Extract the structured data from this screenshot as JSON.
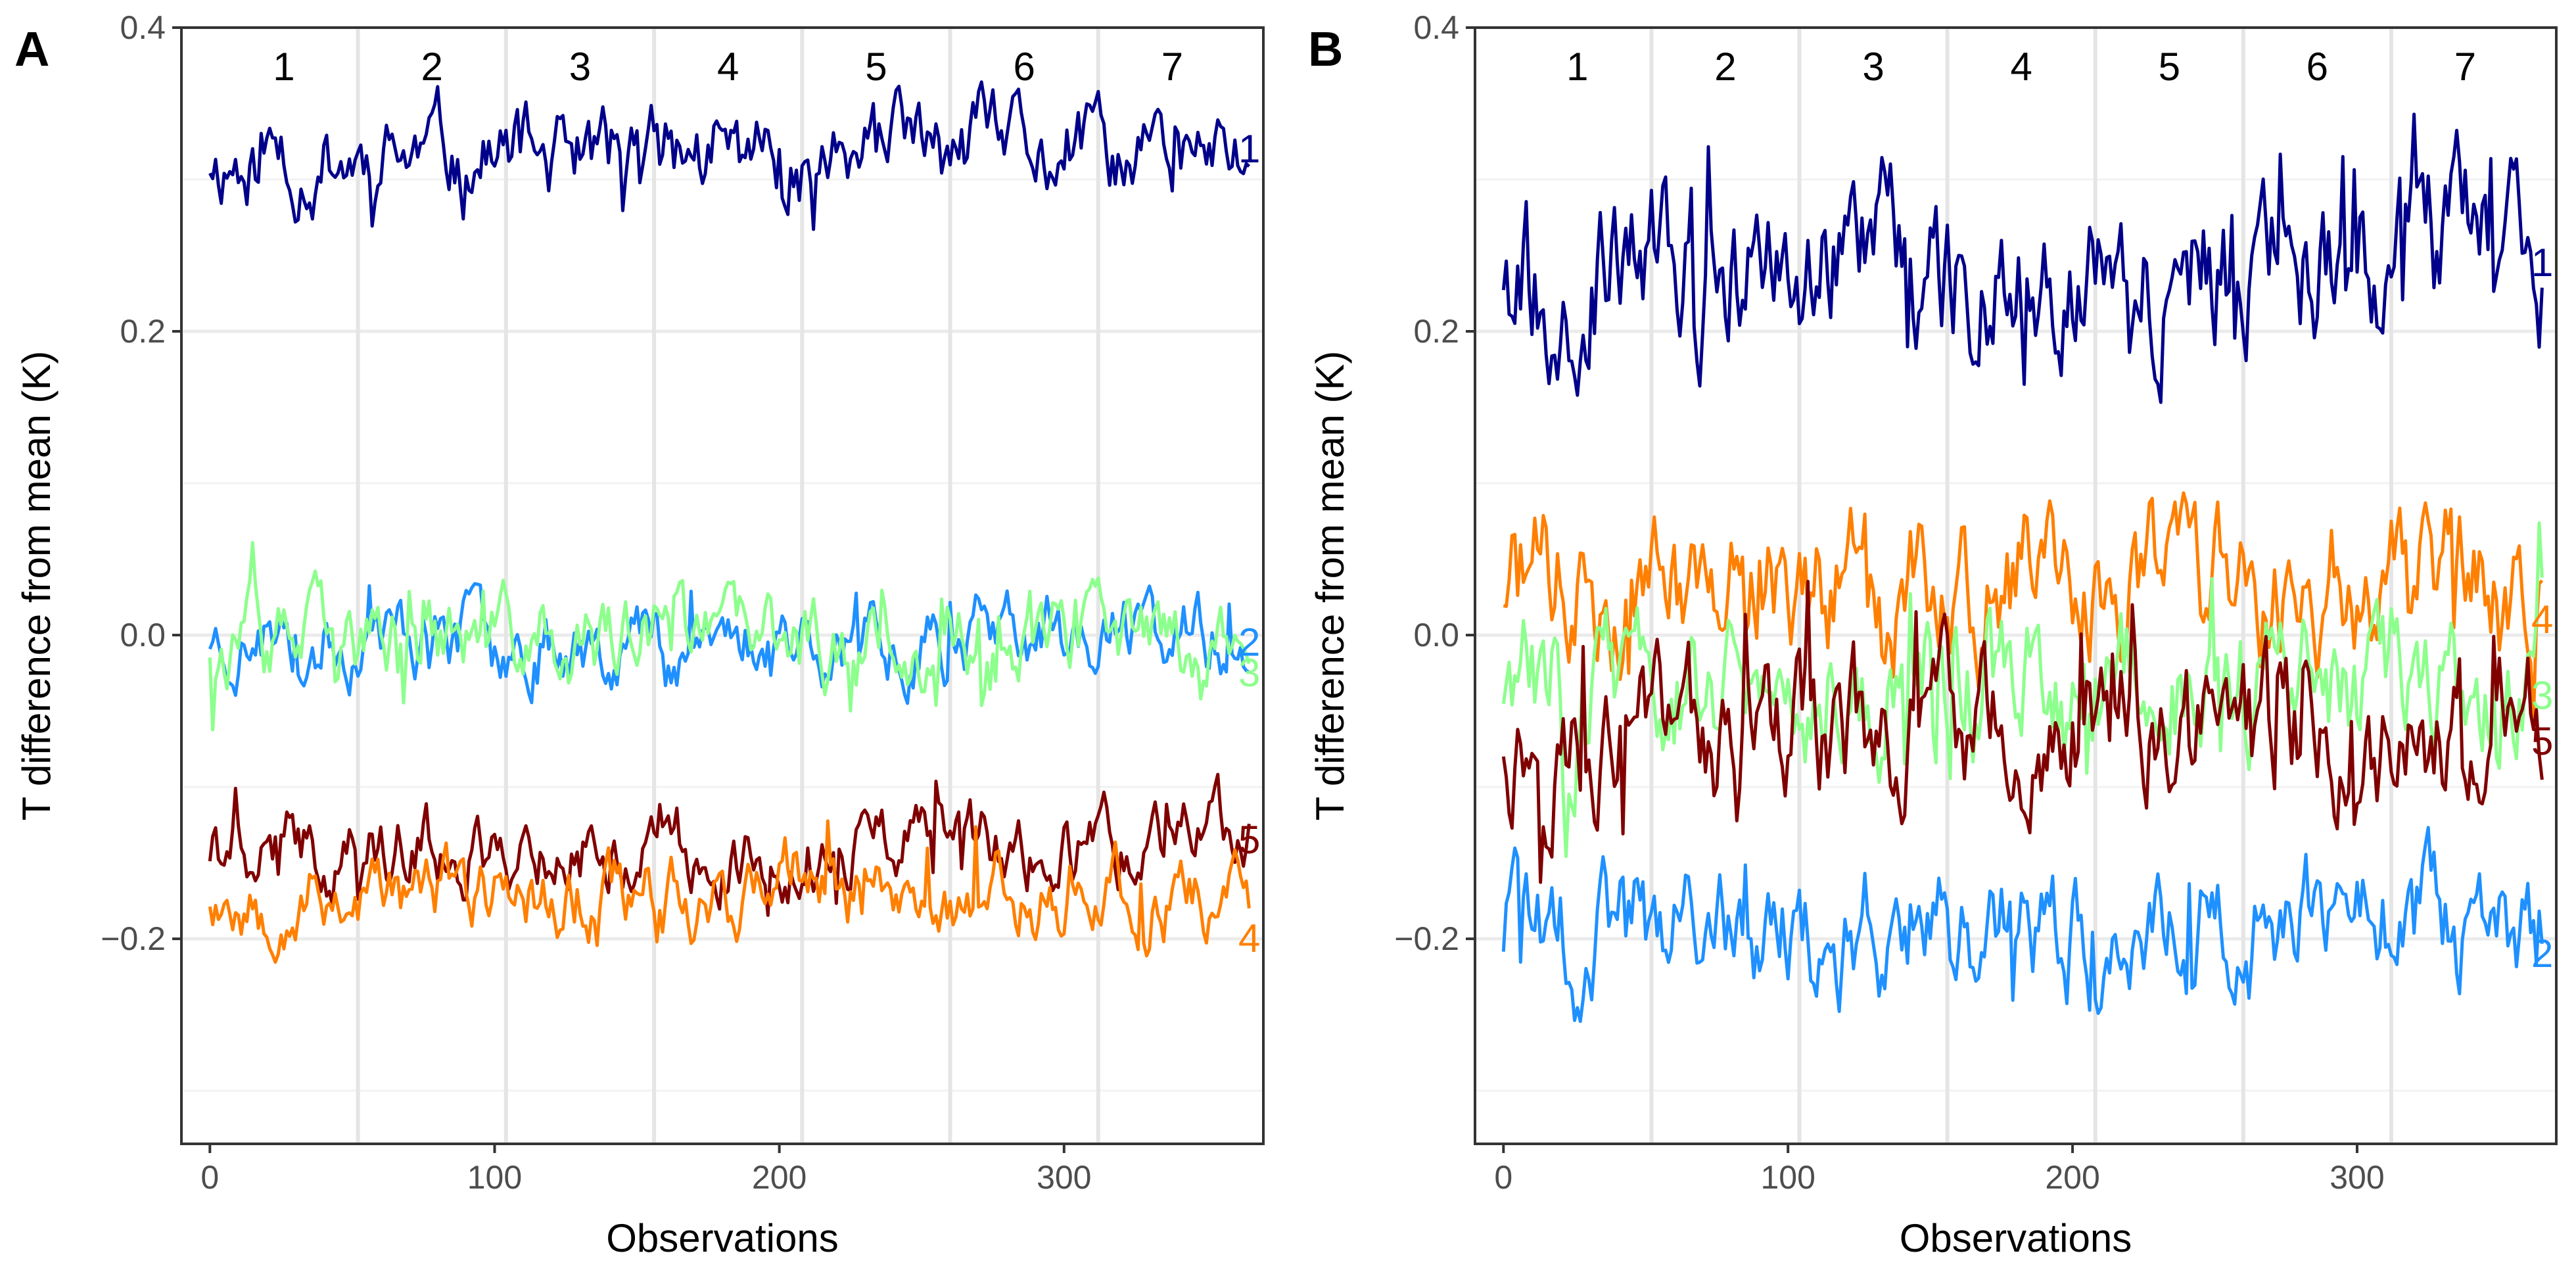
{
  "chart_data": [
    {
      "panel": "A",
      "type": "line",
      "xlabel": "Observations",
      "ylabel": "T difference from mean (K)",
      "xlim": [
        -10,
        370
      ],
      "ylim": [
        -0.335,
        0.4
      ],
      "xticks": [
        0,
        100,
        200,
        300
      ],
      "xtick_labels": [
        "0",
        "100",
        "200",
        "300"
      ],
      "yticks": [
        -0.2,
        0.0,
        0.2,
        0.4
      ],
      "ytick_labels": [
        "−0.2",
        "0.0",
        "0.2",
        "0.4"
      ],
      "grid": true,
      "period_boundaries": [
        52,
        104,
        156,
        208,
        260,
        312
      ],
      "period_labels": [
        "1",
        "2",
        "3",
        "4",
        "5",
        "6",
        "7"
      ],
      "period_label_x": [
        26,
        78,
        130,
        182,
        234,
        286,
        338
      ],
      "series": [
        {
          "name": "1",
          "label": "1",
          "color": "#00008b",
          "center": 0.315,
          "noise": 0.014,
          "spike": 0.03,
          "label_y": 0.32,
          "seed": 11
        },
        {
          "name": "2",
          "label": "2",
          "color": "#1e90ff",
          "center": 0.0,
          "noise": 0.012,
          "spike": 0.035,
          "label_y": -0.005,
          "seed": 23
        },
        {
          "name": "3",
          "label": "3",
          "color": "#8cff8c",
          "center": -0.005,
          "noise": 0.013,
          "spike": 0.04,
          "label_y": -0.025,
          "seed": 37
        },
        {
          "name": "5",
          "label": "5",
          "color": "#800000",
          "center": -0.14,
          "noise": 0.012,
          "spike": 0.035,
          "label_y": -0.135,
          "seed": 41
        },
        {
          "name": "4",
          "label": "4",
          "color": "#ff7f00",
          "center": -0.17,
          "noise": 0.012,
          "spike": 0.04,
          "label_y": -0.2,
          "seed": 53
        }
      ]
    },
    {
      "panel": "B",
      "type": "line",
      "xlabel": "Observations",
      "ylabel": "T difference from mean (K)",
      "xlim": [
        -10,
        370
      ],
      "ylim": [
        -0.335,
        0.4
      ],
      "xticks": [
        0,
        100,
        200,
        300
      ],
      "xtick_labels": [
        "0",
        "100",
        "200",
        "300"
      ],
      "yticks": [
        -0.2,
        0.0,
        0.2,
        0.4
      ],
      "ytick_labels": [
        "−0.2",
        "0.0",
        "0.2",
        "0.4"
      ],
      "grid": true,
      "period_boundaries": [
        52,
        104,
        156,
        208,
        260,
        312
      ],
      "period_labels": [
        "1",
        "2",
        "3",
        "4",
        "5",
        "6",
        "7"
      ],
      "period_label_x": [
        26,
        78,
        130,
        182,
        234,
        286,
        338
      ],
      "series": [
        {
          "name": "1",
          "label": "1",
          "color": "#00008b",
          "center": 0.245,
          "noise": 0.025,
          "spike": 0.06,
          "label_y": 0.245,
          "seed": 67
        },
        {
          "name": "4",
          "label": "4",
          "color": "#ff7f00",
          "center": 0.035,
          "noise": 0.022,
          "spike": 0.06,
          "label_y": 0.01,
          "seed": 71
        },
        {
          "name": "3",
          "label": "3",
          "color": "#8cff8c",
          "center": -0.03,
          "noise": 0.022,
          "spike": 0.06,
          "label_y": -0.04,
          "seed": 83
        },
        {
          "name": "5",
          "label": "5",
          "color": "#800000",
          "center": -0.065,
          "noise": 0.022,
          "spike": 0.06,
          "label_y": -0.07,
          "seed": 97
        },
        {
          "name": "2",
          "label": "2",
          "color": "#1e90ff",
          "center": -0.195,
          "noise": 0.02,
          "spike": 0.05,
          "label_y": -0.21,
          "seed": 101
        }
      ]
    }
  ]
}
